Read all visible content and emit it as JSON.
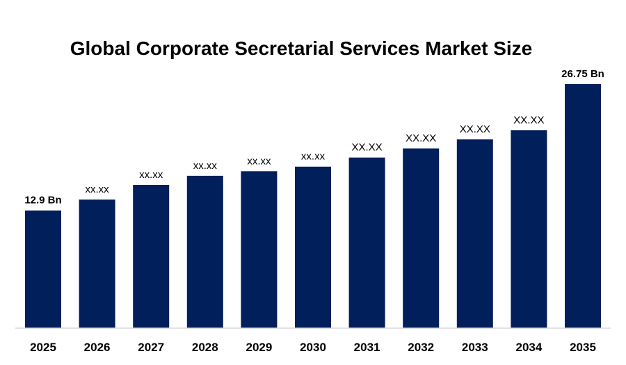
{
  "chart_data": {
    "type": "bar",
    "title": "Global Corporate Secretarial Services Market Size",
    "xlabel": "",
    "ylabel": "",
    "categories": [
      "2025",
      "2026",
      "2027",
      "2028",
      "2029",
      "2030",
      "2031",
      "2032",
      "2033",
      "2034",
      "2035"
    ],
    "values": [
      12.9,
      14.1,
      15.7,
      16.7,
      17.2,
      17.7,
      18.7,
      19.7,
      20.7,
      21.7,
      26.75
    ],
    "data_labels": [
      "12.9 Bn",
      "xx.xx",
      "xx.xx",
      "xx.xx",
      "xx.xx",
      "xx.xx",
      "XX.XX",
      "XX.XX",
      "XX.XX",
      "XX.XX",
      "26.75 Bn"
    ],
    "label_bold": [
      true,
      false,
      false,
      false,
      false,
      false,
      false,
      false,
      false,
      false,
      true
    ],
    "ylim": [
      0,
      27.3
    ],
    "grid": false,
    "legend": "none",
    "bar_color": "#001f5b",
    "axis_color": "#d9d9d9"
  }
}
